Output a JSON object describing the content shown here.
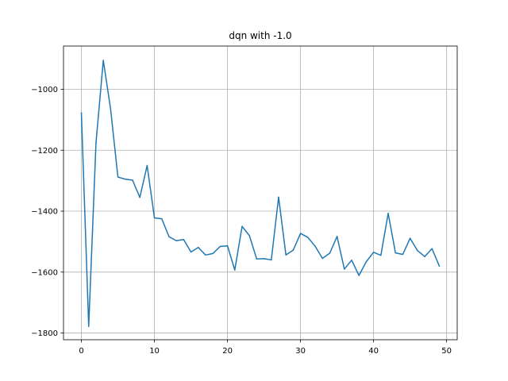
{
  "chart_data": {
    "type": "line",
    "title": "dqn with -1.0",
    "xlabel": "",
    "ylabel": "",
    "xlim": [
      -2.45,
      51.45
    ],
    "ylim": [
      -1822,
      -858
    ],
    "xticks": [
      0,
      10,
      20,
      30,
      40,
      50
    ],
    "yticks": [
      -1800,
      -1600,
      -1400,
      -1200,
      -1000
    ],
    "xtick_labels": [
      "0",
      "10",
      "20",
      "30",
      "40",
      "50"
    ],
    "ytick_labels": [
      "−1800",
      "−1600",
      "−1400",
      "−1200",
      "−1000"
    ],
    "grid": true,
    "legend": "none",
    "series": [
      {
        "color": "#1f77b4",
        "x": [
          0,
          1,
          2,
          3,
          4,
          5,
          6,
          7,
          8,
          9,
          10,
          11,
          12,
          13,
          14,
          15,
          16,
          17,
          18,
          19,
          20,
          21,
          22,
          23,
          24,
          25,
          26,
          27,
          28,
          29,
          30,
          31,
          32,
          33,
          34,
          35,
          36,
          37,
          38,
          39,
          40,
          41,
          42,
          43,
          44,
          45,
          46,
          47,
          48,
          49
        ],
        "values": [
          -1078,
          -1778,
          -1175,
          -905,
          -1065,
          -1288,
          -1295,
          -1298,
          -1355,
          -1250,
          -1422,
          -1425,
          -1484,
          -1497,
          -1493,
          -1534,
          -1519,
          -1544,
          -1539,
          -1516,
          -1514,
          -1593,
          -1450,
          -1480,
          -1557,
          -1556,
          -1560,
          -1354,
          -1544,
          -1528,
          -1473,
          -1486,
          -1515,
          -1555,
          -1538,
          -1483,
          -1590,
          -1561,
          -1611,
          -1566,
          -1535,
          -1545,
          -1407,
          -1537,
          -1542,
          -1489,
          -1529,
          -1549,
          -1523,
          -1580
        ]
      }
    ]
  }
}
